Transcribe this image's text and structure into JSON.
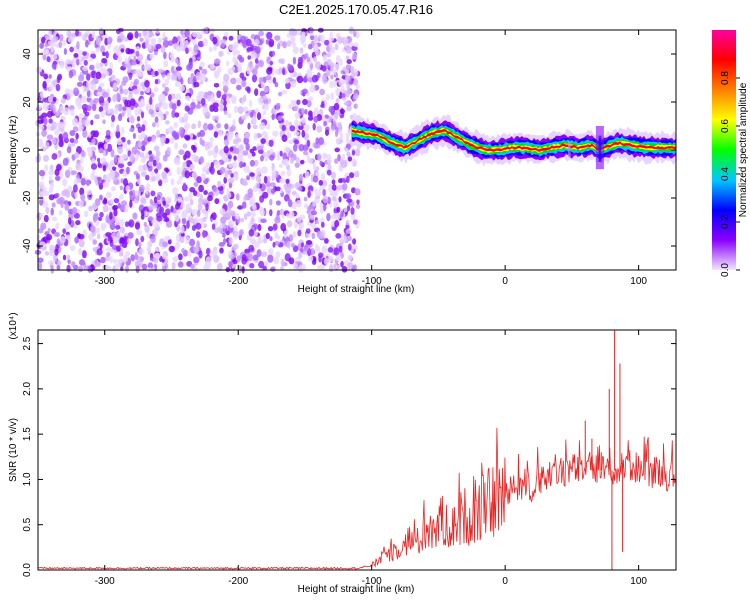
{
  "title": "C2E1.2025.170.05.47.R16",
  "chart_data": [
    {
      "type": "heatmap",
      "xlabel": "Height of straight line (km)",
      "ylabel": "Frequency (Hz)",
      "xlim": [
        -350,
        128
      ],
      "ylim": [
        -50,
        50
      ],
      "x_ticks": [
        "-300",
        "-200",
        "-100",
        "0",
        "100"
      ],
      "y_ticks": [
        "-40",
        "-20",
        "0",
        "20",
        "40"
      ],
      "colorbar": {
        "label": "Normalized spectral amplitude",
        "range": [
          0,
          1
        ],
        "ticks": [
          "0.0",
          "0.2",
          "0.4",
          "0.6",
          "0.8"
        ],
        "colors": [
          "#f2e6ff",
          "#8a00ff",
          "#0000ff",
          "#00c8ff",
          "#00ff00",
          "#ffff00",
          "#ff8000",
          "#ff0000",
          "#ff00a0"
        ]
      },
      "noise_region": {
        "x_range": [
          -350,
          -110
        ],
        "y_range": [
          -50,
          50
        ],
        "level": "low"
      },
      "ridge": {
        "x": [
          -115,
          -105,
          -95,
          -85,
          -75,
          -65,
          -55,
          -45,
          -35,
          -25,
          -15,
          -5,
          5,
          15,
          25,
          35,
          45,
          55,
          65,
          70,
          75,
          85,
          95,
          105,
          115,
          128
        ],
        "y": [
          8,
          7,
          6,
          3,
          1,
          4,
          7,
          8,
          5,
          2,
          0,
          0,
          1,
          1,
          0,
          1,
          2,
          1,
          2,
          0,
          1,
          3,
          2,
          1,
          1,
          1
        ]
      }
    },
    {
      "type": "line",
      "xlabel": "Height of straight line (km)",
      "ylabel": "SNR (10 * v/v)",
      "yscale_label": "(x10⁴)",
      "xlim": [
        -350,
        128
      ],
      "ylim": [
        0,
        2.65
      ],
      "x_ticks": [
        "-300",
        "-200",
        "-100",
        "0",
        "100"
      ],
      "y_ticks": [
        "0.0",
        "0.5",
        "1.0",
        "1.5",
        "2.0",
        "2.5"
      ],
      "series_color": "#ee2222",
      "x": [
        -350,
        -300,
        -250,
        -200,
        -150,
        -110,
        -100,
        -95,
        -90,
        -85,
        -80,
        -75,
        -70,
        -65,
        -60,
        -55,
        -50,
        -45,
        -40,
        -35,
        -30,
        -25,
        -20,
        -15,
        -10,
        -5,
        0,
        5,
        10,
        15,
        20,
        25,
        30,
        35,
        40,
        45,
        50,
        55,
        60,
        65,
        70,
        75,
        80,
        85,
        90,
        95,
        100,
        105,
        110,
        115,
        120,
        128
      ],
      "y": [
        0.02,
        0.02,
        0.02,
        0.02,
        0.02,
        0.02,
        0.05,
        0.1,
        0.18,
        0.2,
        0.25,
        0.3,
        0.35,
        0.3,
        0.45,
        0.4,
        0.5,
        0.55,
        0.45,
        0.55,
        0.6,
        0.58,
        0.65,
        0.7,
        0.75,
        0.78,
        0.85,
        0.95,
        0.9,
        0.95,
        0.9,
        1.0,
        1.05,
        1.0,
        1.1,
        1.1,
        1.12,
        1.1,
        1.15,
        1.12,
        1.1,
        1.1,
        1.0,
        1.1,
        1.15,
        1.15,
        1.12,
        1.1,
        1.08,
        1.1,
        1.05,
        1.05
      ],
      "spikes": [
        {
          "x": 60,
          "y": 1.65
        },
        {
          "x": 65,
          "y": 1.45
        },
        {
          "x": 72,
          "y": 1.3
        },
        {
          "x": 78,
          "y": 2.0
        },
        {
          "x": 80,
          "y": 0.0
        },
        {
          "x": 82,
          "y": 2.65
        },
        {
          "x": 86,
          "y": 2.28
        },
        {
          "x": 88,
          "y": 0.2
        }
      ]
    }
  ]
}
